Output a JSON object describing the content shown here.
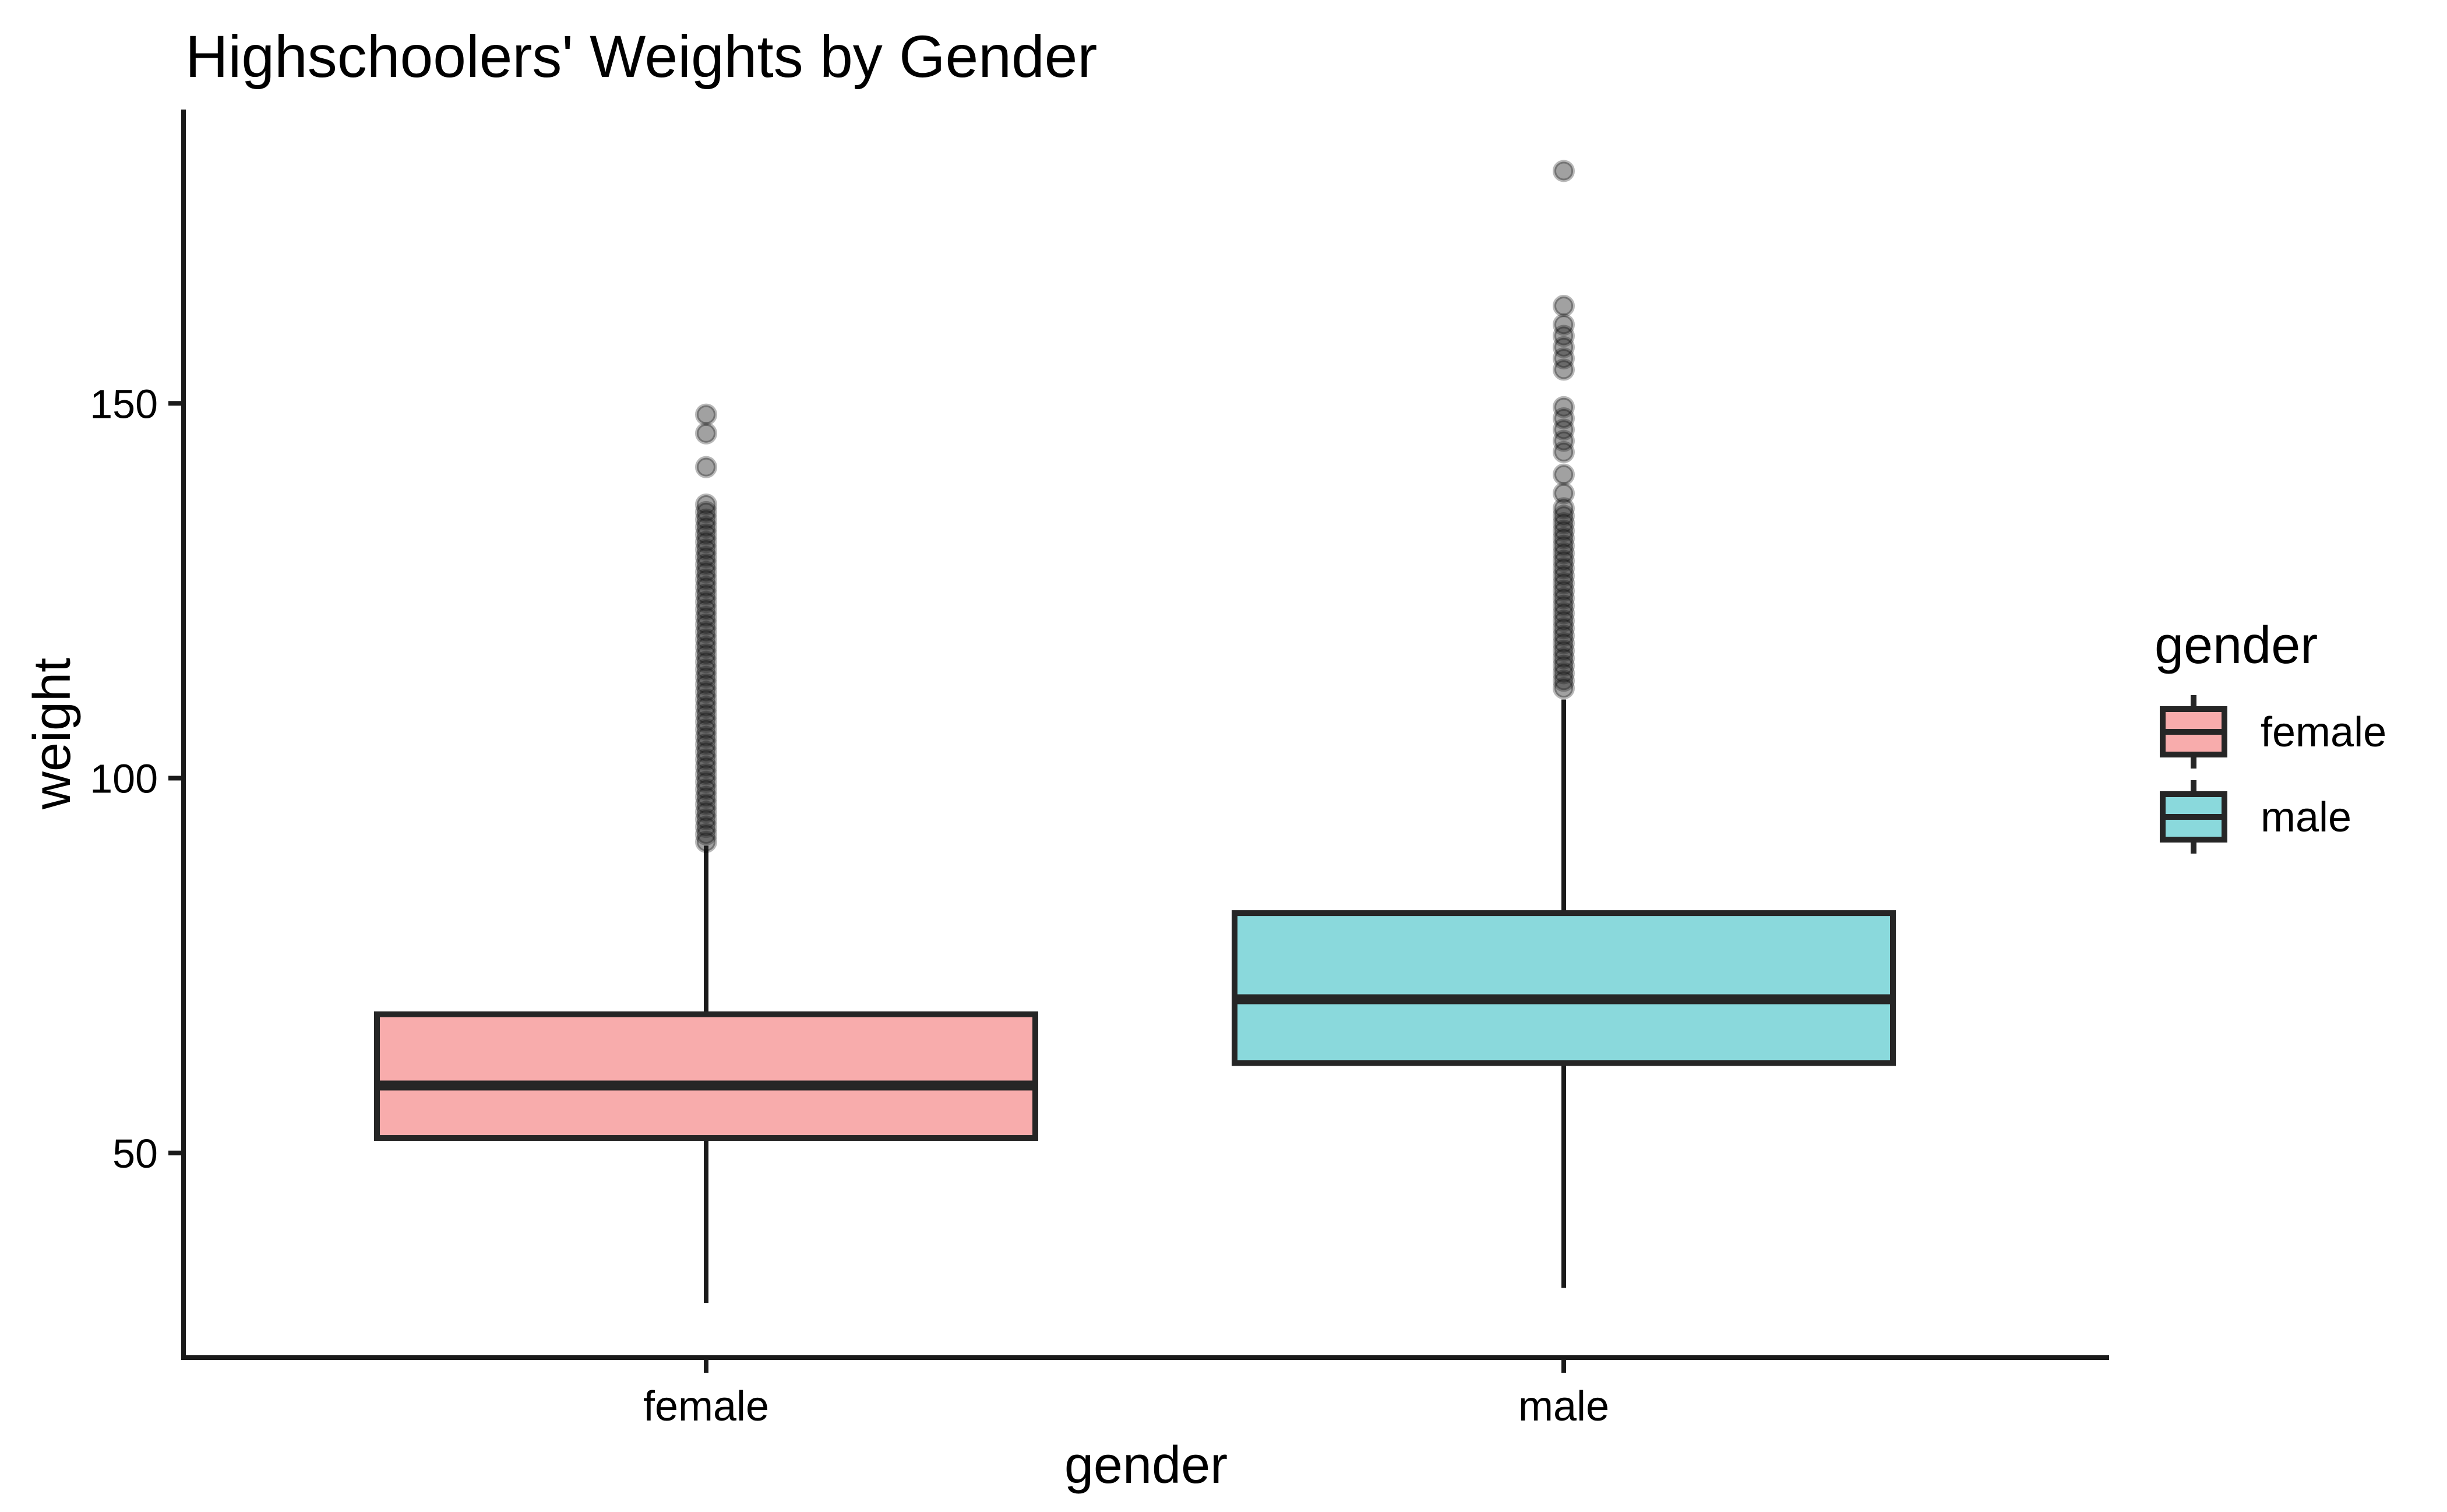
{
  "figure": {
    "title": "Highschoolers' Weights by Gender"
  },
  "legend": {
    "title": "gender",
    "position": "right",
    "entries": [
      {
        "label": "female"
      },
      {
        "label": "male"
      }
    ]
  },
  "colors": {
    "background": "#FFFFFF",
    "female_fill": "#F8ACAC",
    "male_fill": "#8AD9DC",
    "box_border": "#262626",
    "axis_color": "#1A1A1A",
    "text_color": "#000000",
    "outlier_color": "#1E1E1E"
  },
  "chart_data": {
    "type": "boxplot",
    "title": "Highschoolers' Weights by Gender",
    "xlabel": "gender",
    "ylabel": "weight",
    "categories": [
      "female",
      "male"
    ],
    "yticks": [
      50,
      100,
      150
    ],
    "ylim": [
      22.7,
      189.2
    ],
    "grid": "off",
    "legend_position": "right",
    "series": [
      {
        "name": "female",
        "fill": "#F8ACAC",
        "whisker_low": 30,
        "q1": 52,
        "median": 59,
        "q3": 68.5,
        "whisker_high": 91,
        "outliers": [
          148.5,
          146,
          141.5,
          136.5,
          135.5,
          134.5,
          133.5,
          132.5,
          131.5,
          130.5,
          129.5,
          128.5,
          127.5,
          126.5,
          125.5,
          124.5,
          123.5,
          122.5,
          121.5,
          120.5,
          119.5,
          118.5,
          117.5,
          116.5,
          115.5,
          114.5,
          113.5,
          112.5,
          111.5,
          110.5,
          109.5,
          108.5,
          107.5,
          106.5,
          105.5,
          104.5,
          103.5,
          102.5,
          101.5,
          100.5,
          99.5,
          98.5,
          97.5,
          96.5,
          95.5,
          94.5,
          93.5,
          92.5,
          91.5
        ]
      },
      {
        "name": "male",
        "fill": "#8AD9DC",
        "whisker_low": 32,
        "q1": 62,
        "median": 70.5,
        "q3": 82,
        "whisker_high": 110.5,
        "outliers": [
          181,
          163,
          160.5,
          159,
          157.5,
          156,
          154.5,
          149.5,
          148,
          146.5,
          145,
          143.5,
          140.5,
          138,
          136,
          135,
          134,
          133,
          132,
          131,
          130,
          129,
          128,
          127,
          126,
          125,
          124,
          123,
          122,
          121,
          120,
          119,
          118,
          117,
          116,
          115,
          114,
          113,
          112
        ]
      }
    ]
  }
}
